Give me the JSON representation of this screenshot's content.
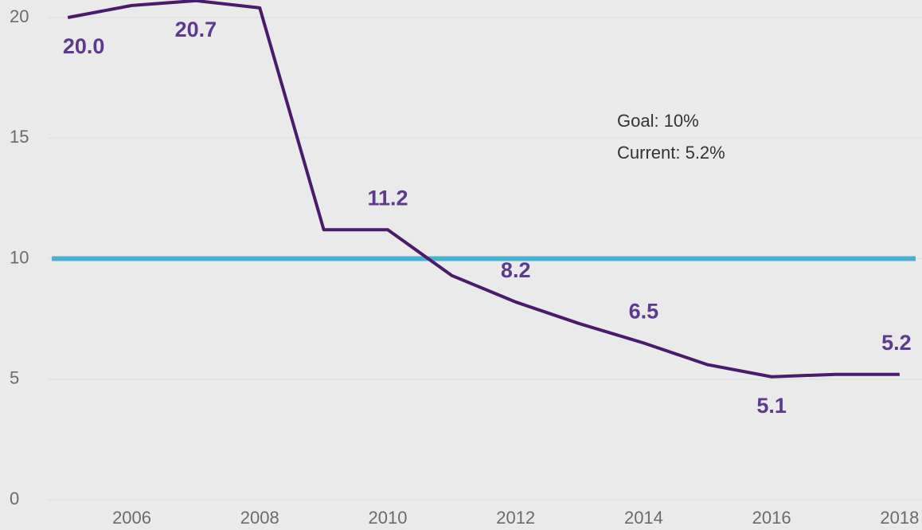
{
  "chart_data": {
    "type": "line",
    "x": [
      2005,
      2006,
      2007,
      2008,
      2009,
      2010,
      2011,
      2012,
      2013,
      2014,
      2015,
      2016,
      2017,
      2018
    ],
    "series": [
      {
        "color": "#4a1a6c",
        "values": [
          20.0,
          20.5,
          20.7,
          20.4,
          11.2,
          11.2,
          9.3,
          8.2,
          7.3,
          6.5,
          5.6,
          5.1,
          5.2,
          5.2
        ],
        "value_labels": [
          "20.0",
          null,
          "20.7",
          null,
          null,
          "11.2",
          null,
          "8.2",
          null,
          "6.5",
          null,
          "5.1",
          null,
          "5.2"
        ]
      }
    ],
    "goal": {
      "value": 10,
      "color": "#4bafd0"
    },
    "annotations": [
      "Goal: 10%",
      "Current: 5.2%"
    ],
    "xlim": [
      2003.94,
      2018.35
    ],
    "xticks": [
      2006,
      2008,
      2010,
      2012,
      2014,
      2016,
      2018
    ],
    "ylim": [
      0,
      20
    ],
    "yticks": [
      0,
      5,
      10,
      15,
      20
    ],
    "grid": true
  }
}
